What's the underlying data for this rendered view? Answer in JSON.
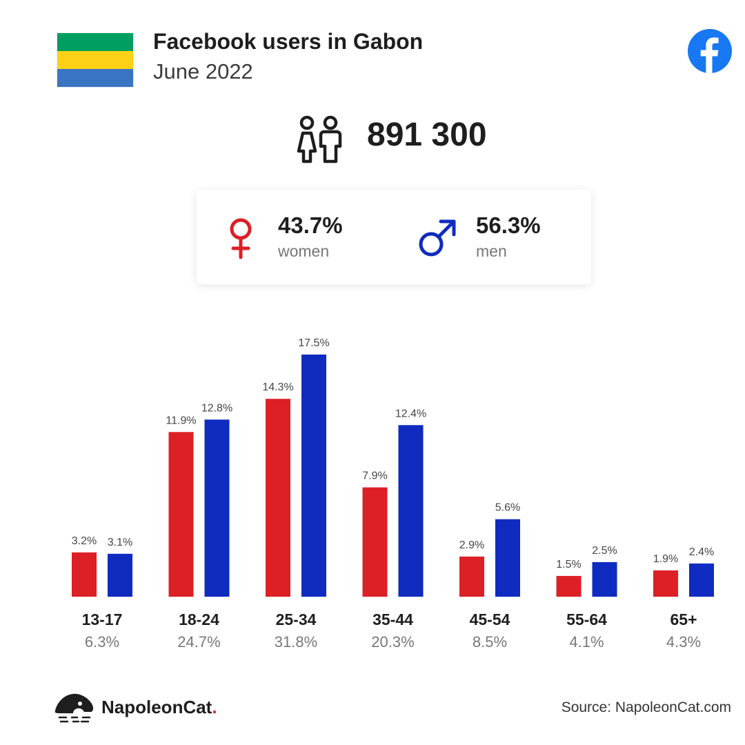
{
  "header": {
    "title": "Facebook users in Gabon",
    "subtitle": "June 2022",
    "flag_colors": [
      "#009e60",
      "#fcd116",
      "#3a75c4"
    ],
    "facebook_color": "#1877f2"
  },
  "total": {
    "value": "891 300",
    "icon": "people-icon"
  },
  "gender": {
    "women": {
      "pct": "43.7%",
      "label": "women",
      "color": "#dd1f26",
      "icon": "female-icon"
    },
    "men": {
      "pct": "56.3%",
      "label": "men",
      "color": "#0f2bc0",
      "icon": "male-icon"
    }
  },
  "chart_data": {
    "type": "bar",
    "categories": [
      "13-17",
      "18-24",
      "25-34",
      "35-44",
      "45-54",
      "55-64",
      "65+"
    ],
    "category_totals": [
      "6.3%",
      "24.7%",
      "31.8%",
      "20.3%",
      "8.5%",
      "4.1%",
      "4.3%"
    ],
    "series": [
      {
        "values": [
          3.2,
          11.9,
          14.3,
          7.9,
          2.9,
          1.5,
          1.9
        ],
        "labels": [
          "3.2%",
          "11.9%",
          "14.3%",
          "7.9%",
          "2.9%",
          "1.5%",
          "1.9%"
        ],
        "color": "#dd1f26"
      },
      {
        "values": [
          3.1,
          12.8,
          17.5,
          12.4,
          5.6,
          2.5,
          2.4
        ],
        "labels": [
          "3.1%",
          "12.8%",
          "17.5%",
          "12.4%",
          "5.6%",
          "2.5%",
          "2.4%"
        ],
        "color": "#0f2bc0"
      }
    ],
    "title": "",
    "xlabel": "",
    "ylabel": "",
    "ylim": [
      0,
      17.5
    ],
    "grid": false,
    "legend": "none"
  },
  "footer": {
    "brand_name": "NapoleonCat",
    "brand_dot": ".",
    "brand_dot_color": "#e51f3a",
    "source": "Source: NapoleonCat.com"
  }
}
